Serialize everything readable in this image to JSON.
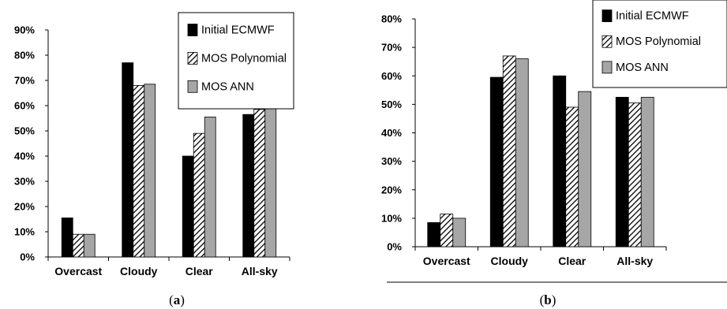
{
  "chart_data": [
    {
      "type": "bar",
      "panel_label": "(a)",
      "panel_letter": "a",
      "categories": [
        "Overcast",
        "Cloudy",
        "Clear",
        "All-sky"
      ],
      "yticks": [
        "0%",
        "10%",
        "20%",
        "30%",
        "40%",
        "50%",
        "60%",
        "70%",
        "80%",
        "90%"
      ],
      "ylim": [
        0,
        90
      ],
      "legend_position": "top-right",
      "grid": false,
      "series": [
        {
          "name": "Initial ECMWF",
          "values": [
            15.5,
            77,
            40,
            56.5
          ]
        },
        {
          "name": "MOS Polynomial",
          "values": [
            9,
            68,
            49,
            58.5
          ]
        },
        {
          "name": "MOS ANN",
          "values": [
            9,
            68.5,
            55.5,
            61.5
          ]
        }
      ]
    },
    {
      "type": "bar",
      "panel_label": "(b)",
      "panel_letter": "b",
      "categories": [
        "Overcast",
        "Cloudy",
        "Clear",
        "All-sky"
      ],
      "yticks": [
        "0%",
        "10%",
        "20%",
        "30%",
        "40%",
        "50%",
        "60%",
        "70%",
        "80%"
      ],
      "ylim": [
        0,
        80
      ],
      "legend_position": "top-right",
      "grid": false,
      "series": [
        {
          "name": "Initial ECMWF",
          "values": [
            8.5,
            59.5,
            60,
            52.5
          ]
        },
        {
          "name": "MOS Polynomial",
          "values": [
            11.5,
            67,
            49,
            50.5
          ]
        },
        {
          "name": "MOS ANN",
          "values": [
            10,
            66,
            54.5,
            52.5
          ]
        }
      ]
    }
  ],
  "series_styles": [
    {
      "fill": "#000000"
    },
    {
      "fill": "hatch"
    },
    {
      "fill": "#a6a6a6"
    }
  ]
}
